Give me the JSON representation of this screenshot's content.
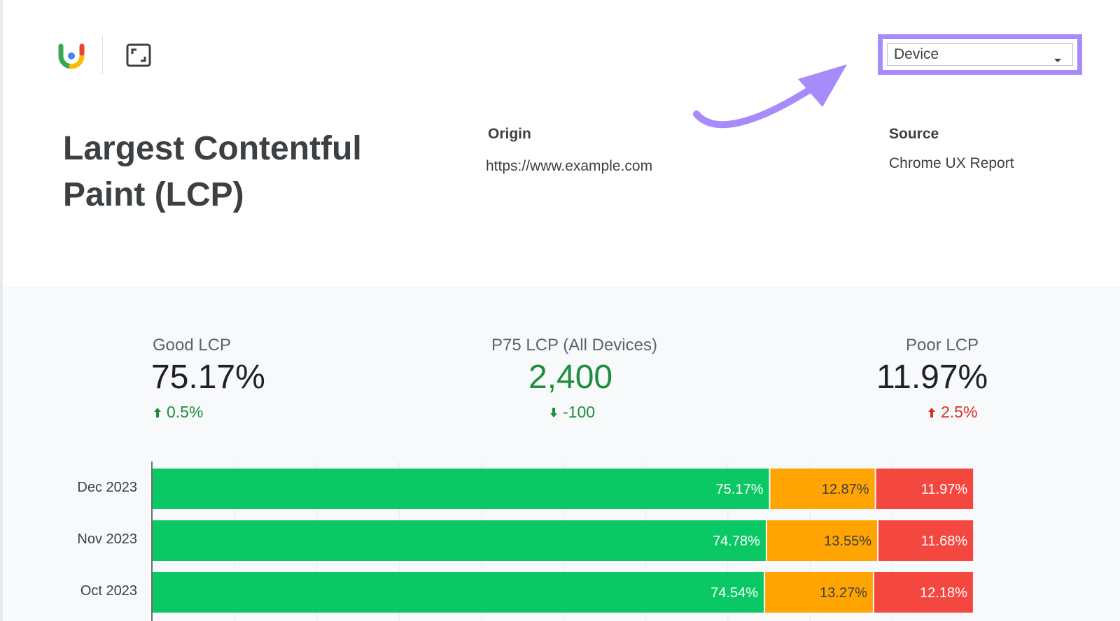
{
  "header": {
    "logo_icon": "crux-logo-icon",
    "fullscreen_icon": "fullscreen-icon",
    "device_filter": {
      "selected": "Device",
      "highlight_color": "#a78bfa"
    }
  },
  "title": "Largest Contentful Paint (LCP)",
  "origin": {
    "heading": "Origin",
    "value": "https://www.example.com"
  },
  "source": {
    "heading": "Source",
    "value": "Chrome UX Report"
  },
  "kpis": {
    "good": {
      "label": "Good LCP",
      "value": "75.17%",
      "delta": "0.5%",
      "direction": "up",
      "color": "#1e8e3e"
    },
    "p75": {
      "label": "P75 LCP (All Devices)",
      "value": "2,400",
      "delta": "-100",
      "direction": "down",
      "color": "#1e8e3e"
    },
    "poor": {
      "label": "Poor LCP",
      "value": "11.97%",
      "delta": "2.5%",
      "direction": "up",
      "color": "#d93025"
    }
  },
  "colors": {
    "good": "#0ac964",
    "needs_improvement": "#ffa400",
    "poor": "#f4473f"
  },
  "chart_data": {
    "type": "bar",
    "stacked": true,
    "orientation": "horizontal",
    "categories": [
      "Dec 2023",
      "Nov 2023",
      "Oct 2023"
    ],
    "series": [
      {
        "values": [
          75.17,
          74.78,
          74.54
        ],
        "labels": [
          "75.17%",
          "74.78%",
          "74.54%"
        ],
        "color": "#0ac964"
      },
      {
        "values": [
          12.87,
          13.55,
          13.27
        ],
        "labels": [
          "12.87%",
          "13.55%",
          "13.27%"
        ],
        "color": "#ffa400"
      },
      {
        "values": [
          11.97,
          11.68,
          12.18
        ],
        "labels": [
          "11.97%",
          "11.68%",
          "12.18%"
        ],
        "color": "#f4473f"
      }
    ],
    "xlim": [
      0,
      100
    ],
    "grid": true
  }
}
